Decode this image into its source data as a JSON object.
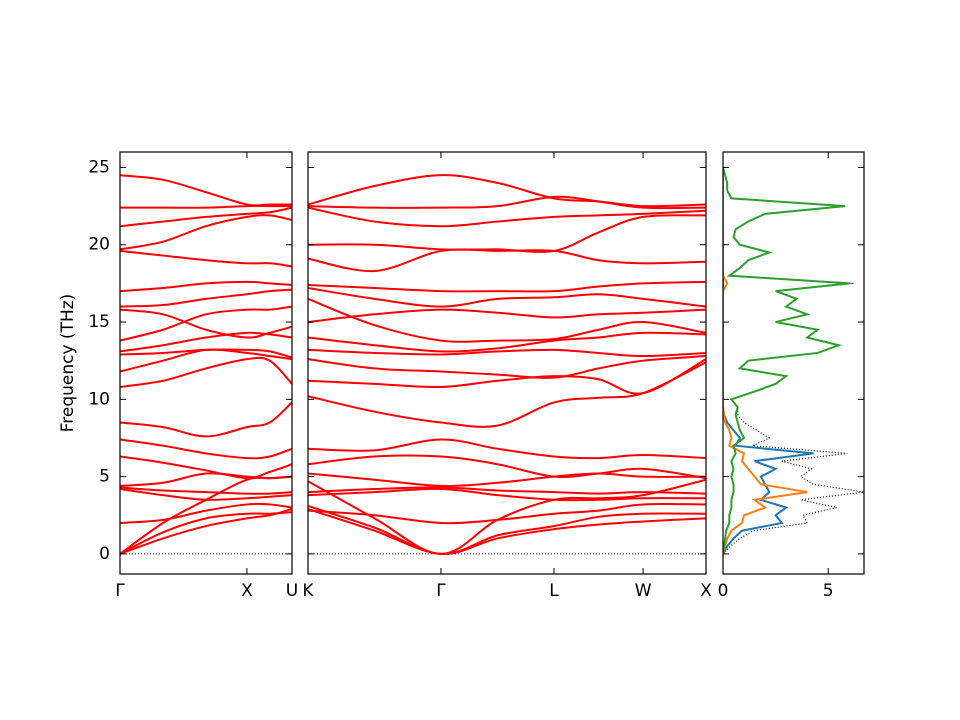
{
  "chart_data": [
    {
      "type": "line",
      "ylabel": "Frequency (THz)",
      "ylim": [
        -1.3,
        26
      ],
      "yticks": [
        0,
        5,
        10,
        15,
        20,
        25
      ],
      "xlim": [
        0,
        1
      ],
      "xticks": [
        {
          "value": 0,
          "label": "Γ"
        },
        {
          "value": 0.738,
          "label": "X"
        },
        {
          "value": 1,
          "label": "U"
        }
      ],
      "hline": {
        "value": 0,
        "color": "#0000ff"
      },
      "color": "#ff0000",
      "x": [
        0,
        0.25,
        0.5,
        0.738,
        0.87,
        1
      ],
      "series": [
        {
          "values": [
            0,
            1.0,
            1.8,
            2.3,
            2.5,
            2.9
          ]
        },
        {
          "values": [
            0,
            1.4,
            2.3,
            2.6,
            2.6,
            2.7
          ]
        },
        {
          "values": [
            0,
            2.0,
            3.5,
            4.8,
            4.9,
            5.0
          ]
        },
        {
          "values": [
            2.0,
            2.2,
            2.8,
            3.2,
            3.2,
            3.0
          ]
        },
        {
          "values": [
            4.2,
            3.8,
            3.5,
            3.6,
            3.7,
            3.8
          ]
        },
        {
          "values": [
            4.3,
            4.1,
            4.0,
            3.9,
            3.9,
            4.0
          ]
        },
        {
          "values": [
            4.4,
            4.6,
            5.2,
            5.0,
            4.9,
            5.0
          ]
        },
        {
          "values": [
            6.3,
            5.9,
            5.4,
            4.9,
            5.3,
            5.8
          ]
        },
        {
          "values": [
            7.4,
            7.0,
            6.5,
            6.2,
            6.3,
            6.8
          ]
        },
        {
          "values": [
            8.5,
            8.2,
            7.6,
            8.2,
            8.5,
            9.8
          ]
        },
        {
          "values": [
            10.8,
            11.2,
            12.0,
            12.6,
            12.5,
            11.0
          ]
        },
        {
          "values": [
            11.8,
            12.5,
            13.2,
            13.0,
            12.8,
            12.6
          ]
        },
        {
          "values": [
            12.9,
            13.0,
            13.2,
            13.2,
            13.1,
            12.7
          ]
        },
        {
          "values": [
            13.1,
            13.5,
            14.0,
            14.3,
            14.2,
            14.0
          ]
        },
        {
          "values": [
            13.8,
            14.5,
            15.5,
            15.8,
            15.8,
            16.0
          ]
        },
        {
          "values": [
            15.8,
            15.5,
            14.5,
            14.0,
            14.3,
            14.7
          ]
        },
        {
          "values": [
            16.0,
            16.1,
            16.5,
            16.8,
            17.0,
            17.1
          ]
        },
        {
          "values": [
            17.0,
            17.2,
            17.5,
            17.6,
            17.5,
            17.4
          ]
        },
        {
          "values": [
            19.6,
            19.3,
            19.0,
            18.8,
            18.8,
            18.6
          ]
        },
        {
          "values": [
            19.7,
            20.2,
            21.2,
            21.8,
            21.9,
            21.6
          ]
        },
        {
          "values": [
            21.2,
            21.5,
            21.8,
            22.0,
            22.1,
            22.4
          ]
        },
        {
          "values": [
            22.4,
            22.4,
            22.4,
            22.5,
            22.5,
            22.5
          ]
        },
        {
          "values": [
            24.5,
            24.2,
            23.4,
            22.6,
            22.6,
            22.6
          ]
        }
      ]
    },
    {
      "type": "line",
      "ylim": [
        -1.3,
        26
      ],
      "xlim": [
        0,
        1
      ],
      "xticks": [
        {
          "value": 0,
          "label": "K"
        },
        {
          "value": 0.334,
          "label": "Γ"
        },
        {
          "value": 0.618,
          "label": "L"
        },
        {
          "value": 0.842,
          "label": "W"
        },
        {
          "value": 1,
          "label": "X"
        }
      ],
      "hline": {
        "value": 0,
        "color": "#0000ff"
      },
      "color": "#ff0000",
      "x": [
        0,
        0.167,
        0.334,
        0.476,
        0.618,
        0.73,
        0.842,
        1
      ],
      "series": [
        {
          "values": [
            2.9,
            1.5,
            0,
            1.0,
            1.6,
            1.9,
            2.1,
            2.3
          ]
        },
        {
          "values": [
            3.1,
            1.7,
            0,
            1.2,
            1.8,
            2.4,
            2.6,
            2.6
          ]
        },
        {
          "values": [
            4.7,
            2.3,
            0,
            2.2,
            3.5,
            3.6,
            3.8,
            4.8
          ]
        },
        {
          "values": [
            2.8,
            2.5,
            2.0,
            2.2,
            2.6,
            2.8,
            3.2,
            3.2
          ]
        },
        {
          "values": [
            3.8,
            4.0,
            4.2,
            3.8,
            3.5,
            3.5,
            3.6,
            3.6
          ]
        },
        {
          "values": [
            4.0,
            4.2,
            4.3,
            4.1,
            4.0,
            3.9,
            4.0,
            3.9
          ]
        },
        {
          "values": [
            5.2,
            4.8,
            4.4,
            4.6,
            5.0,
            5.2,
            5.0,
            5.0
          ]
        },
        {
          "values": [
            5.8,
            6.3,
            6.3,
            5.8,
            5.0,
            5.2,
            5.5,
            4.9
          ]
        },
        {
          "values": [
            6.8,
            6.7,
            7.4,
            6.8,
            6.3,
            6.2,
            6.4,
            6.2
          ]
        },
        {
          "values": [
            10.2,
            9.2,
            8.5,
            8.3,
            9.8,
            10.1,
            10.4,
            12.4
          ]
        },
        {
          "values": [
            11.2,
            11.0,
            10.8,
            11.2,
            11.5,
            11.3,
            10.4,
            12.6
          ]
        },
        {
          "values": [
            12.6,
            12.0,
            11.8,
            11.6,
            11.4,
            12.0,
            12.5,
            12.8
          ]
        },
        {
          "values": [
            13.2,
            13.0,
            12.9,
            13.1,
            13.2,
            13.0,
            12.8,
            13.0
          ]
        },
        {
          "values": [
            14.0,
            13.5,
            13.1,
            13.3,
            13.8,
            14.0,
            14.3,
            14.2
          ]
        },
        {
          "values": [
            16.5,
            14.8,
            13.8,
            13.8,
            13.9,
            14.5,
            15.0,
            14.3
          ]
        },
        {
          "values": [
            15.0,
            15.5,
            15.8,
            15.6,
            15.3,
            15.5,
            15.6,
            15.8
          ]
        },
        {
          "values": [
            17.2,
            16.5,
            16.0,
            16.5,
            16.6,
            16.8,
            16.5,
            16.0
          ]
        },
        {
          "values": [
            17.4,
            17.2,
            17.0,
            17.0,
            17.0,
            17.3,
            17.5,
            17.6
          ]
        },
        {
          "values": [
            19.1,
            18.3,
            19.6,
            19.6,
            19.6,
            19.0,
            18.8,
            18.9
          ]
        },
        {
          "values": [
            20.0,
            20.0,
            19.7,
            19.7,
            19.6,
            20.8,
            21.8,
            21.9
          ]
        },
        {
          "values": [
            22.4,
            21.5,
            21.2,
            21.5,
            21.8,
            21.9,
            22.0,
            22.2
          ]
        },
        {
          "values": [
            22.5,
            22.4,
            22.4,
            22.5,
            23.1,
            22.8,
            22.4,
            22.4
          ]
        },
        {
          "values": [
            22.6,
            23.8,
            24.5,
            24.0,
            23.0,
            22.8,
            22.5,
            22.6
          ]
        }
      ]
    },
    {
      "type": "line",
      "ylim": [
        -1.3,
        26
      ],
      "xlim": [
        0,
        6.7
      ],
      "xticks": [
        0,
        5
      ],
      "y": [
        0,
        0.5,
        1,
        1.5,
        2,
        2.5,
        3,
        3.5,
        4,
        4.5,
        5,
        5.5,
        6,
        6.5,
        7,
        7.5,
        8,
        8.5,
        9,
        9.5,
        10,
        10.5,
        11,
        11.5,
        12,
        12.5,
        13,
        13.5,
        14,
        14.5,
        15,
        15.5,
        16,
        16.5,
        17,
        17.5,
        18,
        18.5,
        19,
        19.5,
        20,
        20.5,
        21,
        21.5,
        22,
        22.5,
        23,
        23.5,
        24,
        24.5,
        25
      ],
      "series": [
        {
          "color": "#000000",
          "linestyle": "dotted",
          "values": [
            0,
            0.35,
            0.8,
            1.45,
            4.0,
            3.8,
            5.4,
            3.7,
            6.7,
            4.3,
            3.7,
            4.2,
            2.8,
            5.9,
            1.4,
            2.2,
            1.6,
            1.0,
            0.7,
            0.7,
            0.4,
            1.5,
            2.5,
            3.0,
            0.8,
            1.2,
            4.5,
            5.5,
            4.0,
            4.5,
            2.5,
            4.0,
            3.0,
            3.5,
            2.5,
            6.2,
            0.3,
            0.8,
            1.2,
            2.2,
            0.8,
            0.5,
            0.6,
            1.2,
            2.0,
            5.8,
            0.4,
            0.2,
            0.2,
            0.1,
            0
          ]
        },
        {
          "color": "#1f77b4",
          "linestyle": "solid",
          "values": [
            0,
            0.2,
            0.5,
            0.9,
            2.8,
            2.5,
            3.0,
            1.8,
            2.2,
            2.0,
            1.8,
            2.5,
            1.5,
            4.3,
            0.6,
            0.8,
            0.5,
            0.2,
            0.05,
            0,
            0,
            0,
            0,
            0,
            0,
            0,
            0,
            0,
            0,
            0,
            0,
            0,
            0,
            0,
            0,
            0,
            0,
            0,
            0,
            0,
            0,
            0,
            0,
            0,
            0,
            0,
            0,
            0,
            0,
            0,
            0
          ]
        },
        {
          "color": "#ff7f0e",
          "linestyle": "solid",
          "values": [
            0,
            0.1,
            0.2,
            0.4,
            0.9,
            1.0,
            2.0,
            1.5,
            4.0,
            1.8,
            1.5,
            1.2,
            0.9,
            1.0,
            0.3,
            0.4,
            0.3,
            0.1,
            0.05,
            0,
            0,
            0,
            0,
            0,
            0,
            0,
            0,
            0,
            0,
            0,
            0,
            0,
            0,
            0,
            0,
            0.2,
            0,
            0,
            0,
            0,
            0,
            0,
            0,
            0,
            0,
            0,
            0,
            0,
            0,
            0,
            0
          ]
        },
        {
          "color": "#2ca02c",
          "linestyle": "solid",
          "values": [
            0,
            0.05,
            0.1,
            0.15,
            0.3,
            0.3,
            0.4,
            0.4,
            0.5,
            0.5,
            0.4,
            0.5,
            0.4,
            0.6,
            0.5,
            1.0,
            0.8,
            0.7,
            0.6,
            0.7,
            0.4,
            1.5,
            2.5,
            3.0,
            0.8,
            1.2,
            4.5,
            5.5,
            4.0,
            4.5,
            2.5,
            4.0,
            3.0,
            3.5,
            2.5,
            6.0,
            0.3,
            0.8,
            1.2,
            2.2,
            0.8,
            0.5,
            0.6,
            1.2,
            2.0,
            5.8,
            0.4,
            0.2,
            0.2,
            0.1,
            0
          ]
        }
      ]
    }
  ]
}
